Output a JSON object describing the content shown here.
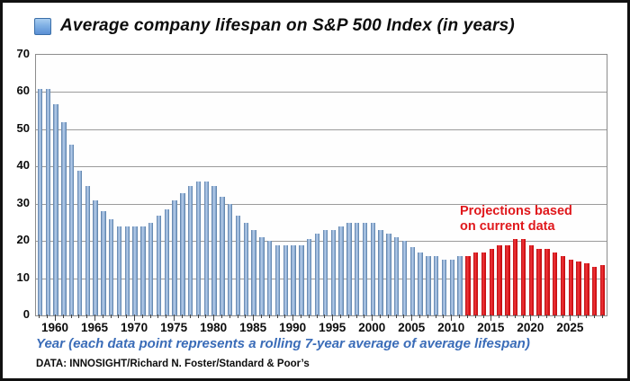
{
  "title": "Average company lifespan on S&P 500 Index (in years)",
  "legend": {
    "swatch": "blue-gradient-square"
  },
  "annotation": {
    "line1": "Projections based",
    "line2": "on current data"
  },
  "x_axis_caption": "Year (each data point represents a rolling 7-year average of average lifespan)",
  "source": "DATA: INNOSIGHT/Richard N. Foster/Standard & Poor’s",
  "colors": {
    "historical_bar": "#7fa3cf",
    "projection_bar": "#e0181c",
    "annotation_text": "#e0181c",
    "caption_text": "#3a6cb8",
    "gridline": "#9b9b9b",
    "border": "#111111"
  },
  "chart_data": {
    "type": "bar",
    "title": "Average company lifespan on S&P 500 Index (in years)",
    "xlabel": "Year (each data point represents a rolling 7-year average of average lifespan)",
    "ylabel": "",
    "ylim": [
      0,
      70
    ],
    "y_ticks": [
      0,
      10,
      20,
      30,
      40,
      50,
      60,
      70
    ],
    "x_start_year": 1958,
    "x_end_year": 2029,
    "x_tick_labels": [
      1960,
      1965,
      1970,
      1975,
      1980,
      1985,
      1990,
      1995,
      2000,
      2005,
      2010,
      2015,
      2020,
      2025
    ],
    "grid": true,
    "series": [
      {
        "name": "historical",
        "start_year": 1958,
        "values": [
          61,
          61,
          57,
          52,
          46,
          39,
          35,
          31,
          28,
          26,
          24,
          24,
          24,
          24,
          25,
          27,
          28.5,
          31,
          33,
          35,
          36,
          36,
          35,
          32,
          30,
          27,
          25,
          23,
          21,
          20,
          19,
          19,
          19,
          19,
          20.5,
          22,
          23,
          23,
          24,
          25,
          25,
          25,
          25,
          23,
          22,
          21,
          20,
          18.5,
          17,
          16,
          16,
          15,
          15,
          16
        ]
      },
      {
        "name": "projection",
        "start_year": 2012,
        "values": [
          16,
          17,
          17,
          18,
          19,
          19,
          20.5,
          20.5,
          19,
          18,
          18,
          17,
          16,
          15,
          14.5,
          14,
          13,
          13.5
        ]
      }
    ]
  }
}
